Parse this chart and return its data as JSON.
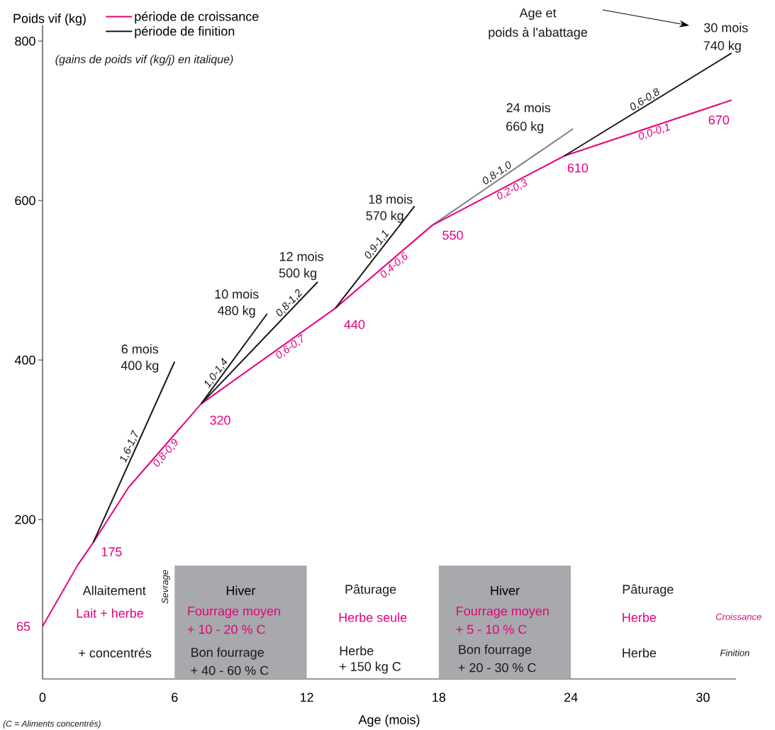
{
  "chart_data": {
    "type": "line",
    "xlabel": "Age (mois)",
    "ylabel": "Poids vif (kg)",
    "xlim": [
      0,
      31.5
    ],
    "ylim": [
      0,
      820
    ],
    "xticks": [
      0,
      6,
      12,
      18,
      24,
      30
    ],
    "yticks": [
      200,
      400,
      600,
      800
    ],
    "legend": "top left",
    "series": [
      {
        "name": "période de croissance",
        "color": "#e6007e",
        "x": [
          0,
          1.6,
          2.3,
          3.9,
          7.2,
          13.3,
          17.7,
          23.7,
          31.3
        ],
        "values": [
          66,
          143,
          171,
          240,
          345,
          465,
          569,
          656,
          726
        ]
      },
      {
        "name": "période de finition",
        "color": "#1a1a1a",
        "x": [
          2.3,
          6.0,
          null,
          7.2,
          10.2,
          null,
          7.2,
          12.5,
          null,
          13.3,
          16.9,
          null,
          23.7,
          31.3
        ],
        "values": [
          171,
          398,
          null,
          345,
          458,
          null,
          345,
          498,
          null,
          465,
          593,
          null,
          656,
          785
        ]
      },
      {
        "color": "#808080",
        "x": [
          17.7,
          24.1
        ],
        "values": [
          569,
          690
        ]
      }
    ],
    "bands": [
      {
        "axis": "x",
        "from": 6,
        "to": 12,
        "label": "Hiver",
        "color": "#a7a9ac"
      },
      {
        "axis": "x",
        "from": 18,
        "to": 24,
        "label": "Hiver",
        "color": "#a7a9ac"
      }
    ],
    "annotations": [
      "(gains de poids vif (kg/j) en italique)",
      "Age et",
      "poids à l'abattage",
      {
        "text": "6 mois",
        "x": 6.0,
        "y": 398
      },
      {
        "text": "400 kg",
        "x": 6.0,
        "y": 398
      },
      {
        "text": "10 mois",
        "x": 10.2,
        "y": 458
      },
      {
        "text": "480 kg",
        "x": 10.2,
        "y": 458
      },
      {
        "text": "12 mois",
        "x": 12.5,
        "y": 498
      },
      {
        "text": "500 kg",
        "x": 12.5,
        "y": 498
      },
      {
        "text": "18 mois",
        "x": 16.9,
        "y": 593
      },
      {
        "text": "570 kg",
        "x": 16.9,
        "y": 593
      },
      {
        "text": "24 mois",
        "x": 24.1,
        "y": 690
      },
      {
        "text": "660 kg",
        "x": 24.1,
        "y": 690
      },
      {
        "text": "30 mois",
        "x": 31.3,
        "y": 785
      },
      {
        "text": "740 kg",
        "x": 31.3,
        "y": 785
      },
      {
        "text": "65",
        "x": 0,
        "y": 66
      },
      {
        "text": "175",
        "x": 2.3,
        "y": 171
      },
      {
        "text": "320",
        "x": 7.2,
        "y": 345
      },
      {
        "text": "440",
        "x": 13.3,
        "y": 465
      },
      {
        "text": "550",
        "x": 17.7,
        "y": 569
      },
      {
        "text": "610",
        "x": 23.7,
        "y": 656
      },
      {
        "text": "670",
        "x": 31.3,
        "y": 726
      },
      {
        "text": "1,6-1,7",
        "x": 4.2,
        "y": 288
      },
      {
        "text": "1,0-1,4",
        "x": 8.1,
        "y": 379
      },
      {
        "text": "0,8-1,2",
        "x": 11.4,
        "y": 466
      },
      {
        "text": "0,9-1,1",
        "x": 15.4,
        "y": 540
      },
      {
        "text": "0,8-1,0",
        "x": 20.8,
        "y": 628
      },
      {
        "text": "0,6-0,8",
        "x": 27.5,
        "y": 720
      },
      {
        "text": "0,8-0,9",
        "x": 5.4,
        "y": 288
      },
      {
        "text": "0,6-0,7",
        "x": 11.1,
        "y": 422
      },
      {
        "text": "0,4-0,6",
        "x": 15.8,
        "y": 524
      },
      {
        "text": "0,2-0,3",
        "x": 21.2,
        "y": 620
      },
      {
        "text": "0,0-0,1",
        "x": 27.7,
        "y": 693
      },
      "Sevrage",
      "Allaitement",
      "Lait + herbe",
      "+ concentrés",
      "Fourrage moyen",
      "+ 10 - 20 % C",
      "Bon fourrage",
      "+ 40 - 60 % C",
      "Pâturage",
      "Herbe seule",
      "Herbe",
      "+ 150 kg C",
      "Fourrage moyen",
      "+ 5 - 10 % C",
      "Bon fourrage",
      "+ 20 - 30 % C",
      "Pâturage",
      "Herbe",
      "Herbe",
      "Croissance",
      "Finition",
      "(C = Aliments concentrés)"
    ]
  }
}
